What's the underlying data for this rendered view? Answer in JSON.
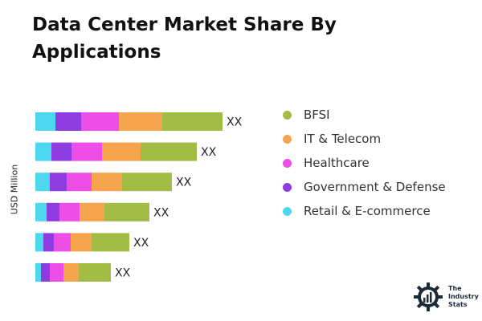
{
  "title": "Data Center Market Share By Applications",
  "chart_data": {
    "type": "bar",
    "orientation": "horizontal",
    "stacked": true,
    "title": "Data Center Market Share By Applications",
    "ylabel": "USD Million",
    "categories": [
      "",
      "",
      "",
      "",
      "",
      ""
    ],
    "data_labels": [
      "XX",
      "XX",
      "XX",
      "XX",
      "XX",
      "XX"
    ],
    "series": [
      {
        "name": "Retail & E-commerce",
        "color": "#4dd8ef",
        "values": [
          25,
          20,
          18,
          14,
          10,
          7
        ]
      },
      {
        "name": "Government & Defense",
        "color": "#8e3ce0",
        "values": [
          32,
          25,
          21,
          16,
          13,
          11
        ]
      },
      {
        "name": "Healthcare",
        "color": "#ee4ee8",
        "values": [
          47,
          38,
          31,
          25,
          21,
          17
        ]
      },
      {
        "name": "IT & Telecom",
        "color": "#f6a44e",
        "values": [
          54,
          48,
          38,
          31,
          26,
          19
        ]
      },
      {
        "name": "BFSI",
        "color": "#a2bc45",
        "values": [
          75,
          70,
          62,
          56,
          47,
          40
        ]
      }
    ],
    "legend": "right",
    "grid": false,
    "xaxis_visible": false
  },
  "legend_items": [
    {
      "label": "BFSI",
      "color": "#a2bc45"
    },
    {
      "label": "IT & Telecom",
      "color": "#f6a44e"
    },
    {
      "label": "Healthcare",
      "color": "#ee4ee8"
    },
    {
      "label": "Government & Defense",
      "color": "#8e3ce0"
    },
    {
      "label": "Retail & E-commerce",
      "color": "#4dd8ef"
    }
  ],
  "logo": {
    "line1": "The",
    "line2": "Industry",
    "line3": "Stats"
  }
}
